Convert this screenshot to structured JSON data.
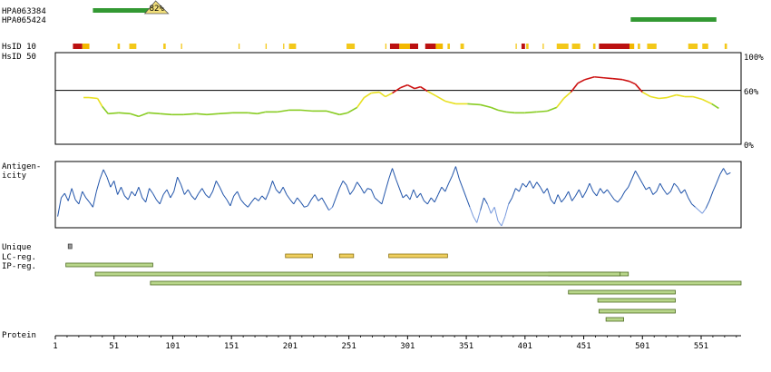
{
  "chart_data": {
    "type": "line",
    "protein_length": 585,
    "labels": {
      "antibody_1": "HPA063384",
      "antibody_2": "HPA065424",
      "hsid10": "HsID 10",
      "hsid50": "HsID 50",
      "antigenicity_1": "Antigen-",
      "antigenicity_2": "icity",
      "unique": "Unique",
      "lc_reg": "LC-reg.",
      "ip_reg": "IP-reg.",
      "protein": "Protein",
      "pct_100": "100%",
      "pct_60": "60%",
      "pct_0": "0%",
      "overlap_badge": "82%"
    },
    "x_ticks": [
      1,
      51,
      101,
      151,
      201,
      251,
      301,
      351,
      401,
      451,
      501,
      551
    ],
    "antibodies": [
      {
        "name": "HPA063384",
        "start": 33,
        "end": 88,
        "color": "#339933",
        "badge": "82%"
      },
      {
        "name": "HPA065424",
        "start": 491,
        "end": 564,
        "color": "#339933"
      }
    ],
    "hsid10_segments": [
      {
        "start": 16,
        "end": 24,
        "color": "#bb1111"
      },
      {
        "start": 24,
        "end": 30,
        "color": "#f3b800"
      },
      {
        "start": 54,
        "end": 56,
        "color": "#f3c81a"
      },
      {
        "start": 64,
        "end": 70,
        "color": "#f3c81a"
      },
      {
        "start": 93,
        "end": 95,
        "color": "#f3c81a"
      },
      {
        "start": 108,
        "end": 109,
        "color": "#f3c81a"
      },
      {
        "start": 157,
        "end": 158,
        "color": "#f3c81a"
      },
      {
        "start": 180,
        "end": 181,
        "color": "#f3c81a"
      },
      {
        "start": 195,
        "end": 196,
        "color": "#f3c81a"
      },
      {
        "start": 200,
        "end": 206,
        "color": "#f3c81a"
      },
      {
        "start": 249,
        "end": 256,
        "color": "#f3c81a"
      },
      {
        "start": 282,
        "end": 283,
        "color": "#f3c81a"
      },
      {
        "start": 286,
        "end": 294,
        "color": "#bb1111"
      },
      {
        "start": 294,
        "end": 303,
        "color": "#f3b800"
      },
      {
        "start": 303,
        "end": 310,
        "color": "#bb1111"
      },
      {
        "start": 316,
        "end": 325,
        "color": "#bb1111"
      },
      {
        "start": 325,
        "end": 331,
        "color": "#f3b800"
      },
      {
        "start": 335,
        "end": 337,
        "color": "#f3c81a"
      },
      {
        "start": 346,
        "end": 349,
        "color": "#f3c81a"
      },
      {
        "start": 393,
        "end": 394,
        "color": "#f3c81a"
      },
      {
        "start": 398,
        "end": 401,
        "color": "#bb1111"
      },
      {
        "start": 402,
        "end": 404,
        "color": "#f3c81a"
      },
      {
        "start": 416,
        "end": 417,
        "color": "#f3c81a"
      },
      {
        "start": 428,
        "end": 438,
        "color": "#f3c81a"
      },
      {
        "start": 441,
        "end": 448,
        "color": "#f3c81a"
      },
      {
        "start": 459,
        "end": 461,
        "color": "#f3c81a"
      },
      {
        "start": 464,
        "end": 490,
        "color": "#bb1111"
      },
      {
        "start": 490,
        "end": 494,
        "color": "#f3b800"
      },
      {
        "start": 497,
        "end": 499,
        "color": "#f3c81a"
      },
      {
        "start": 505,
        "end": 513,
        "color": "#f3c81a"
      },
      {
        "start": 540,
        "end": 548,
        "color": "#f3c81a"
      },
      {
        "start": 552,
        "end": 557,
        "color": "#f3c81a"
      },
      {
        "start": 571,
        "end": 573,
        "color": "#f3c81a"
      }
    ],
    "hsid50_series": {
      "ylim": [
        0,
        100
      ],
      "threshold": 60,
      "points": [
        [
          25,
          52
        ],
        [
          30,
          52
        ],
        [
          37,
          51
        ],
        [
          41,
          42
        ],
        [
          46,
          34
        ],
        [
          55,
          35
        ],
        [
          65,
          34
        ],
        [
          72,
          31
        ],
        [
          80,
          35
        ],
        [
          90,
          34
        ],
        [
          100,
          33
        ],
        [
          110,
          33
        ],
        [
          121,
          34
        ],
        [
          130,
          33
        ],
        [
          140,
          34
        ],
        [
          152,
          35
        ],
        [
          165,
          35
        ],
        [
          173,
          34
        ],
        [
          180,
          36
        ],
        [
          190,
          36
        ],
        [
          200,
          38
        ],
        [
          210,
          38
        ],
        [
          220,
          37
        ],
        [
          232,
          37
        ],
        [
          243,
          33
        ],
        [
          250,
          35
        ],
        [
          258,
          41
        ],
        [
          264,
          52
        ],
        [
          270,
          57
        ],
        [
          277,
          58
        ],
        [
          282,
          53
        ],
        [
          288,
          57
        ],
        [
          295,
          63
        ],
        [
          301,
          66
        ],
        [
          307,
          62
        ],
        [
          312,
          64
        ],
        [
          318,
          59
        ],
        [
          325,
          54
        ],
        [
          333,
          48
        ],
        [
          342,
          45
        ],
        [
          352,
          45
        ],
        [
          363,
          44
        ],
        [
          372,
          41
        ],
        [
          378,
          38
        ],
        [
          385,
          36
        ],
        [
          392,
          35
        ],
        [
          401,
          35
        ],
        [
          411,
          36
        ],
        [
          420,
          37
        ],
        [
          428,
          41
        ],
        [
          434,
          51
        ],
        [
          440,
          58
        ],
        [
          446,
          68
        ],
        [
          452,
          72
        ],
        [
          460,
          75
        ],
        [
          468,
          74
        ],
        [
          476,
          73
        ],
        [
          484,
          72
        ],
        [
          490,
          70
        ],
        [
          495,
          67
        ],
        [
          501,
          58
        ],
        [
          508,
          53
        ],
        [
          515,
          51
        ],
        [
          522,
          52
        ],
        [
          530,
          55
        ],
        [
          537,
          53
        ],
        [
          544,
          53
        ],
        [
          552,
          50
        ],
        [
          560,
          45
        ],
        [
          566,
          40
        ]
      ]
    },
    "antigenicity_series": {
      "points": [
        [
          3,
          0.15
        ],
        [
          6,
          0.45
        ],
        [
          9,
          0.52
        ],
        [
          12,
          0.4
        ],
        [
          15,
          0.6
        ],
        [
          18,
          0.42
        ],
        [
          21,
          0.35
        ],
        [
          24,
          0.55
        ],
        [
          27,
          0.45
        ],
        [
          30,
          0.38
        ],
        [
          33,
          0.3
        ],
        [
          36,
          0.55
        ],
        [
          39,
          0.75
        ],
        [
          42,
          0.9
        ],
        [
          45,
          0.78
        ],
        [
          48,
          0.62
        ],
        [
          51,
          0.72
        ],
        [
          54,
          0.5
        ],
        [
          57,
          0.62
        ],
        [
          60,
          0.48
        ],
        [
          63,
          0.42
        ],
        [
          66,
          0.55
        ],
        [
          69,
          0.48
        ],
        [
          72,
          0.62
        ],
        [
          75,
          0.45
        ],
        [
          78,
          0.38
        ],
        [
          81,
          0.6
        ],
        [
          84,
          0.52
        ],
        [
          87,
          0.42
        ],
        [
          90,
          0.35
        ],
        [
          93,
          0.5
        ],
        [
          96,
          0.58
        ],
        [
          99,
          0.45
        ],
        [
          102,
          0.55
        ],
        [
          105,
          0.78
        ],
        [
          108,
          0.66
        ],
        [
          111,
          0.5
        ],
        [
          114,
          0.58
        ],
        [
          117,
          0.48
        ],
        [
          120,
          0.42
        ],
        [
          123,
          0.52
        ],
        [
          126,
          0.6
        ],
        [
          129,
          0.5
        ],
        [
          132,
          0.45
        ],
        [
          135,
          0.55
        ],
        [
          138,
          0.72
        ],
        [
          141,
          0.62
        ],
        [
          144,
          0.5
        ],
        [
          147,
          0.42
        ],
        [
          150,
          0.32
        ],
        [
          153,
          0.48
        ],
        [
          156,
          0.55
        ],
        [
          159,
          0.42
        ],
        [
          162,
          0.35
        ],
        [
          165,
          0.3
        ],
        [
          168,
          0.38
        ],
        [
          171,
          0.45
        ],
        [
          174,
          0.4
        ],
        [
          177,
          0.48
        ],
        [
          180,
          0.42
        ],
        [
          183,
          0.55
        ],
        [
          186,
          0.72
        ],
        [
          189,
          0.58
        ],
        [
          192,
          0.52
        ],
        [
          195,
          0.62
        ],
        [
          198,
          0.5
        ],
        [
          201,
          0.42
        ],
        [
          204,
          0.35
        ],
        [
          207,
          0.45
        ],
        [
          210,
          0.38
        ],
        [
          213,
          0.3
        ],
        [
          216,
          0.32
        ],
        [
          219,
          0.42
        ],
        [
          222,
          0.5
        ],
        [
          225,
          0.4
        ],
        [
          228,
          0.45
        ],
        [
          231,
          0.35
        ],
        [
          234,
          0.25
        ],
        [
          237,
          0.3
        ],
        [
          240,
          0.45
        ],
        [
          243,
          0.6
        ],
        [
          246,
          0.72
        ],
        [
          249,
          0.65
        ],
        [
          252,
          0.5
        ],
        [
          255,
          0.58
        ],
        [
          258,
          0.7
        ],
        [
          261,
          0.62
        ],
        [
          264,
          0.52
        ],
        [
          267,
          0.6
        ],
        [
          270,
          0.58
        ],
        [
          273,
          0.45
        ],
        [
          276,
          0.4
        ],
        [
          279,
          0.35
        ],
        [
          282,
          0.55
        ],
        [
          285,
          0.75
        ],
        [
          288,
          0.92
        ],
        [
          291,
          0.75
        ],
        [
          294,
          0.6
        ],
        [
          297,
          0.45
        ],
        [
          300,
          0.5
        ],
        [
          303,
          0.42
        ],
        [
          306,
          0.58
        ],
        [
          309,
          0.45
        ],
        [
          312,
          0.52
        ],
        [
          315,
          0.4
        ],
        [
          318,
          0.35
        ],
        [
          321,
          0.45
        ],
        [
          324,
          0.38
        ],
        [
          327,
          0.5
        ],
        [
          330,
          0.62
        ],
        [
          333,
          0.55
        ],
        [
          336,
          0.68
        ],
        [
          339,
          0.8
        ],
        [
          342,
          0.95
        ],
        [
          345,
          0.75
        ],
        [
          348,
          0.6
        ],
        [
          351,
          0.45
        ],
        [
          354,
          0.3
        ],
        [
          357,
          0.15
        ],
        [
          360,
          0.05
        ],
        [
          363,
          0.25
        ],
        [
          366,
          0.45
        ],
        [
          369,
          0.35
        ],
        [
          372,
          0.2
        ],
        [
          375,
          0.3
        ],
        [
          378,
          0.08
        ],
        [
          381,
          0.0
        ],
        [
          384,
          0.15
        ],
        [
          387,
          0.35
        ],
        [
          390,
          0.45
        ],
        [
          393,
          0.6
        ],
        [
          396,
          0.55
        ],
        [
          399,
          0.68
        ],
        [
          402,
          0.62
        ],
        [
          405,
          0.72
        ],
        [
          408,
          0.6
        ],
        [
          411,
          0.7
        ],
        [
          414,
          0.62
        ],
        [
          417,
          0.52
        ],
        [
          420,
          0.6
        ],
        [
          423,
          0.42
        ],
        [
          426,
          0.35
        ],
        [
          429,
          0.5
        ],
        [
          432,
          0.38
        ],
        [
          435,
          0.45
        ],
        [
          438,
          0.55
        ],
        [
          441,
          0.4
        ],
        [
          444,
          0.48
        ],
        [
          447,
          0.58
        ],
        [
          450,
          0.45
        ],
        [
          453,
          0.55
        ],
        [
          456,
          0.68
        ],
        [
          459,
          0.55
        ],
        [
          462,
          0.48
        ],
        [
          465,
          0.6
        ],
        [
          468,
          0.52
        ],
        [
          471,
          0.58
        ],
        [
          474,
          0.5
        ],
        [
          477,
          0.42
        ],
        [
          480,
          0.38
        ],
        [
          483,
          0.45
        ],
        [
          486,
          0.55
        ],
        [
          489,
          0.62
        ],
        [
          492,
          0.75
        ],
        [
          495,
          0.88
        ],
        [
          498,
          0.78
        ],
        [
          501,
          0.68
        ],
        [
          504,
          0.58
        ],
        [
          507,
          0.62
        ],
        [
          510,
          0.5
        ],
        [
          513,
          0.55
        ],
        [
          516,
          0.68
        ],
        [
          519,
          0.58
        ],
        [
          522,
          0.5
        ],
        [
          525,
          0.55
        ],
        [
          528,
          0.68
        ],
        [
          531,
          0.62
        ],
        [
          534,
          0.52
        ],
        [
          537,
          0.58
        ],
        [
          540,
          0.45
        ],
        [
          543,
          0.35
        ],
        [
          546,
          0.3
        ],
        [
          549,
          0.25
        ],
        [
          552,
          0.2
        ],
        [
          555,
          0.28
        ],
        [
          558,
          0.4
        ],
        [
          561,
          0.55
        ],
        [
          564,
          0.68
        ],
        [
          567,
          0.82
        ],
        [
          570,
          0.92
        ],
        [
          573,
          0.82
        ],
        [
          576,
          0.85
        ]
      ]
    },
    "unique_regions": [
      {
        "start": 12,
        "end": 15
      }
    ],
    "lc_regions": [
      {
        "start": 197,
        "end": 220,
        "color": "#f0d060"
      },
      {
        "start": 243,
        "end": 255,
        "color": "#f0d060"
      },
      {
        "start": 285,
        "end": 335,
        "color": "#f0d060"
      }
    ],
    "ip_regions": [
      {
        "start": 10,
        "end": 84
      },
      {
        "start": 421,
        "end": 489
      },
      {
        "start": 35,
        "end": 482
      },
      {
        "start": 82,
        "end": 585
      },
      {
        "start": 438,
        "end": 529
      },
      {
        "start": 463,
        "end": 529
      },
      {
        "start": 464,
        "end": 529
      },
      {
        "start": 470,
        "end": 485
      }
    ],
    "colors": {
      "antibody": "#339933",
      "hsid_high": "#cc1111",
      "hsid_mid": "#e8e020",
      "hsid_low": "#88cc22",
      "antigen_line": "#2255aa",
      "antigen_light": "#7799dd",
      "region_fill": "#b8d68a",
      "region_stroke": "#4d6b22",
      "frame": "#000000"
    }
  }
}
